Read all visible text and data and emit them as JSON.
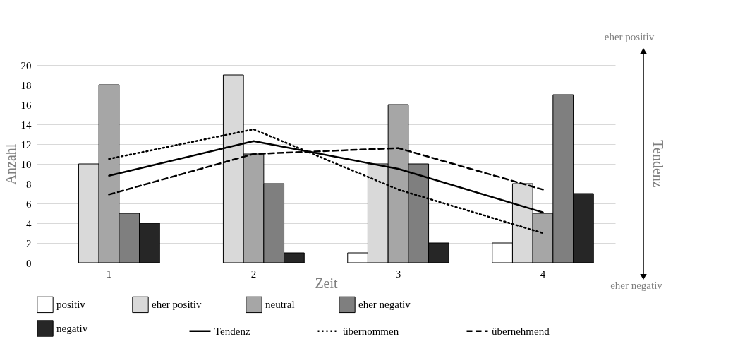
{
  "chart_data": {
    "type": "bar",
    "xlabel": "Zeit",
    "ylabel": "Anzahl",
    "y2label": "Tendenz",
    "categories": [
      "1",
      "2",
      "3",
      "4"
    ],
    "series": [
      {
        "name": "positiv",
        "color": "#ffffff",
        "values": [
          null,
          null,
          1,
          2
        ]
      },
      {
        "name": "eher positiv",
        "color": "#d9d9d9",
        "values": [
          10,
          19,
          10,
          8
        ]
      },
      {
        "name": "neutral",
        "color": "#a6a6a6",
        "values": [
          18,
          11,
          16,
          5
        ]
      },
      {
        "name": "eher negativ",
        "color": "#7f7f7f",
        "values": [
          5,
          8,
          10,
          17
        ]
      },
      {
        "name": "negativ",
        "color": "#262626",
        "values": [
          4,
          1,
          2,
          7
        ]
      },
      {
        "name": "Tendenz",
        "type": "line",
        "color": "#000000",
        "line_style": "solid",
        "values": [
          8.8,
          12.3,
          9.5,
          5.1
        ]
      },
      {
        "name": "übernommen",
        "type": "line",
        "color": "#000000",
        "line_style": "dotted",
        "values": [
          10.5,
          13.5,
          7.4,
          3.0
        ]
      },
      {
        "name": "übernehmend",
        "type": "line",
        "color": "#000000",
        "line_style": "dashed",
        "values": [
          6.9,
          11.0,
          11.6,
          7.4
        ]
      }
    ],
    "ylim": [
      0,
      20
    ],
    "yticks": [
      0,
      2,
      4,
      6,
      8,
      10,
      12,
      14,
      16,
      18,
      20
    ],
    "grid": "y",
    "legend": "bottom",
    "marker": "none",
    "annotations": [
      "eher positiv",
      "eher negativ"
    ]
  }
}
